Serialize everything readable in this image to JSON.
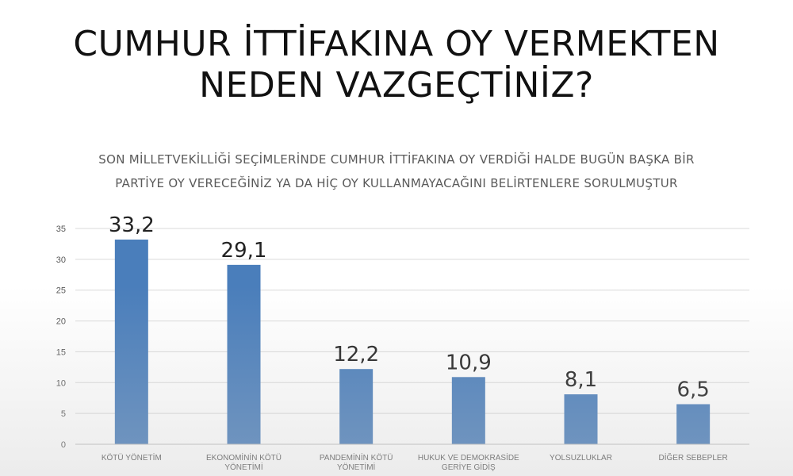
{
  "title": "CUMHUR İTTİFAKINA OY VERMEKTEN NEDEN VAZGEÇTİNİZ?",
  "chart_data": {
    "type": "bar",
    "title": "SON MİLLETVEKİLLİĞİ SEÇİMLERİNDE CUMHUR İTTİFAKINA OY VERDİĞİ HALDE BUGÜN BAŞKA BİR PARTİYE OY VERECEĞİNİZ YA DA HİÇ OY KULLANMAYACAĞINI BELİRTENLERE SORULMUŞTUR",
    "categories": [
      "KÖTÜ YÖNETİM",
      "EKONOMİNİN KÖTÜ YÖNETİMİ",
      "PANDEMİNİN KÖTÜ YÖNETİMİ",
      "HUKUK VE DEMOKRASİDE GERİYE GİDİŞ",
      "YOLSUZLUKLAR",
      "DİĞER SEBEPLER"
    ],
    "values": [
      33.2,
      29.1,
      12.2,
      10.9,
      8.1,
      6.5
    ],
    "value_labels": [
      "33,2",
      "29,1",
      "12,2",
      "10,9",
      "8,1",
      "6,5"
    ],
    "ylim": [
      0,
      35
    ],
    "yticks": [
      "0",
      "5",
      "10",
      "15",
      "20",
      "25",
      "30",
      "35"
    ],
    "grid": true,
    "bar_color": "#4a7ebb",
    "grid_color": "#d9d9d9"
  }
}
